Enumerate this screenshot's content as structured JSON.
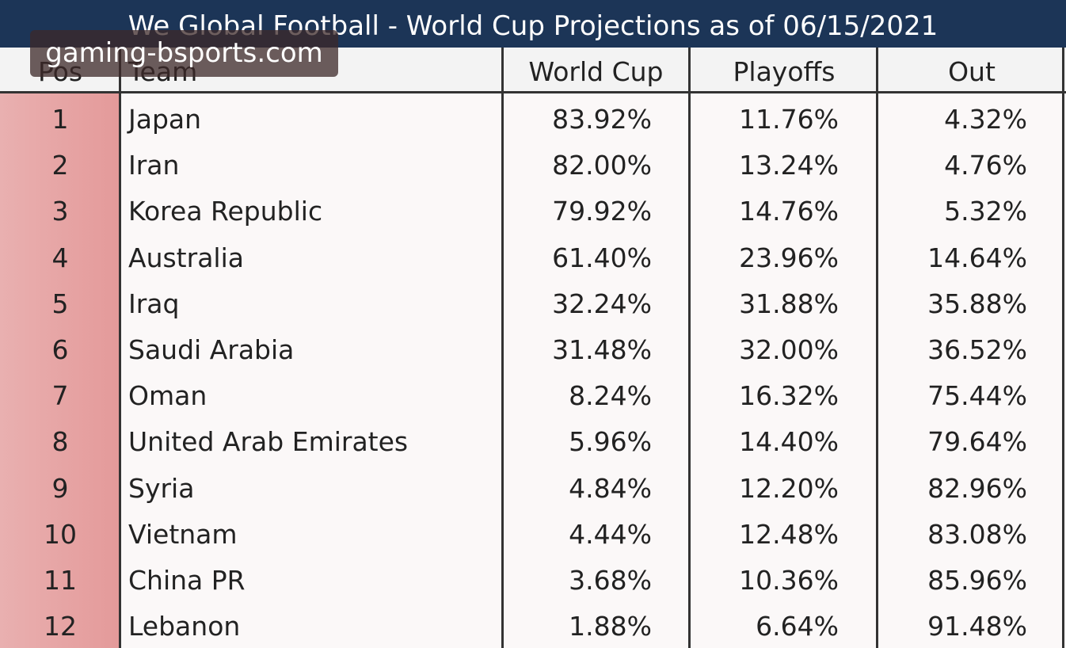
{
  "header": {
    "title": "We Global Football - World Cup Projections as of 06/15/2021"
  },
  "watermark": "gaming-bsports.com",
  "table": {
    "columns": [
      "Pos",
      "Team",
      "World Cup",
      "Playoffs",
      "Out"
    ],
    "rows": [
      [
        "1",
        "Japan",
        "83.92%",
        "11.76%",
        "4.32%"
      ],
      [
        "2",
        "Iran",
        "82.00%",
        "13.24%",
        "4.76%"
      ],
      [
        "3",
        "Korea Republic",
        "79.92%",
        "14.76%",
        "5.32%"
      ],
      [
        "4",
        "Australia",
        "61.40%",
        "23.96%",
        "14.64%"
      ],
      [
        "5",
        "Iraq",
        "32.24%",
        "31.88%",
        "35.88%"
      ],
      [
        "6",
        "Saudi Arabia",
        "31.48%",
        "32.00%",
        "36.52%"
      ],
      [
        "7",
        "Oman",
        "8.24%",
        "16.32%",
        "75.44%"
      ],
      [
        "8",
        "United Arab Emirates",
        "5.96%",
        "14.40%",
        "79.64%"
      ],
      [
        "9",
        "Syria",
        "4.84%",
        "12.20%",
        "82.96%"
      ],
      [
        "10",
        "Vietnam",
        "4.44%",
        "12.48%",
        "83.08%"
      ],
      [
        "11",
        "China PR",
        "3.68%",
        "10.36%",
        "85.96%"
      ],
      [
        "12",
        "Lebanon",
        "1.88%",
        "6.64%",
        "91.48%"
      ]
    ]
  }
}
